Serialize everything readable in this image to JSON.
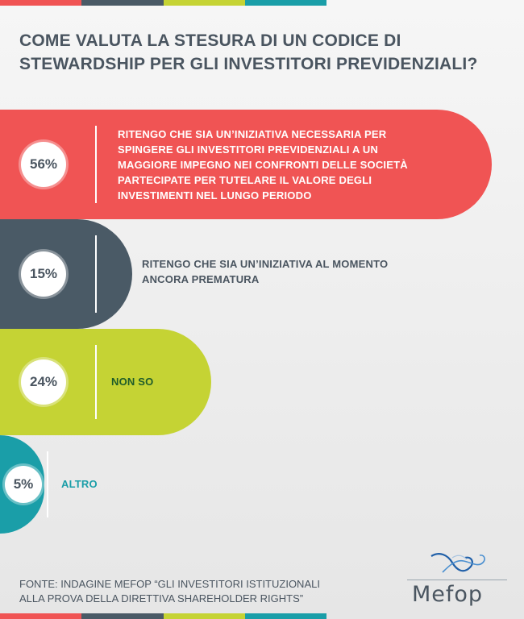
{
  "title": "Come valuta la stesura di un codice di stewardship per gli investitori previdenziali?",
  "source": "Fonte: indagine Mefop “Gli investitori istituzionali alla prova della direttiva shareholder rights”",
  "brand": {
    "name": "Mefop",
    "icon": "mefop-wave-logo-icon"
  },
  "stripe_colors": [
    "#f05454",
    "#4a5a66",
    "#c5d334",
    "#1a9ea8"
  ],
  "chart_data": {
    "type": "bar",
    "orientation": "horizontal",
    "title": "Come valuta la stesura di un codice di stewardship per gli investitori previdenziali?",
    "categories": [
      "Ritengo che sia un’iniziativa necessaria per spingere gli investitori previdenziali a un maggiore impegno nei confronti delle società partecipate per tutelare il valore degli investimenti nel lungo periodo",
      "Ritengo che sia un’iniziativa al momento ancora prematura",
      "Non so",
      "Altro"
    ],
    "values": [
      56,
      15,
      24,
      5
    ],
    "value_labels": [
      "56%",
      "15%",
      "24%",
      "5%"
    ],
    "unit": "%",
    "colors": [
      "#f05454",
      "#4a5a66",
      "#c5d334",
      "#1a9ea8"
    ],
    "label_colors": [
      "#ffffff",
      "#4a5560",
      "#1f5c2a",
      "#1a9ea8"
    ],
    "grid": false,
    "legend": "none"
  }
}
